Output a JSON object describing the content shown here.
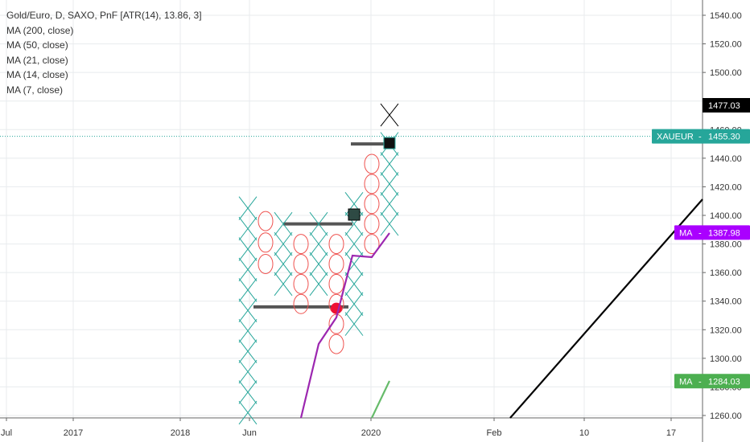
{
  "legend": {
    "title": "Gold/Euro, D, SAXO, PnF [ATR(14), 13.86, 3]",
    "ma200": "MA (200, close)",
    "ma50": "MA (50, close)",
    "ma21": "MA (21, close)",
    "ma14": "MA (14, close)",
    "ma7": "MA (7, close)"
  },
  "chart_data": {
    "type": "point-and-figure",
    "symbol": "Gold/Euro",
    "ylim": [
      1255,
      1550
    ],
    "y_ticks": [
      "1540.00",
      "1520.00",
      "1500.00",
      "1480.00",
      "1460.00",
      "1440.00",
      "1420.00",
      "1400.00",
      "1380.00",
      "1360.00",
      "1340.00",
      "1320.00",
      "1300.00",
      "1280.00",
      "1260.00"
    ],
    "x_ticks": [
      "Jul",
      "2017",
      "2018",
      "Jun",
      "2020",
      "Feb",
      "10",
      "17"
    ],
    "columns": [
      {
        "type": "X",
        "low": 1262,
        "high": 1405
      },
      {
        "type": "O",
        "low": 1366,
        "high": 1396
      },
      {
        "type": "X",
        "low": 1352,
        "high": 1394
      },
      {
        "type": "O",
        "low": 1338,
        "high": 1380
      },
      {
        "type": "X",
        "low": 1352,
        "high": 1394
      },
      {
        "type": "O",
        "low": 1310,
        "high": 1380
      },
      {
        "type": "X",
        "low": 1324,
        "high": 1408
      },
      {
        "type": "O",
        "low": 1380,
        "high": 1436
      },
      {
        "type": "X",
        "low": 1394,
        "high": 1450
      }
    ],
    "current_box_x": 1477,
    "support_lines": [
      1336,
      1394,
      1450
    ],
    "ma_lines": [
      {
        "name": "MA",
        "color": "#9c27b0",
        "points": [
          [
            1,
            1256
          ],
          [
            2,
            1310
          ],
          [
            4,
            1375
          ],
          [
            5,
            1375
          ],
          [
            6,
            1388
          ]
        ]
      },
      {
        "name": "MA",
        "color": "#66bb6a",
        "points": [
          [
            4.5,
            1262
          ],
          [
            5.2,
            1285
          ]
        ]
      }
    ],
    "trend_line": [
      [
        8.0,
        1256
      ],
      [
        10.6,
        1412
      ]
    ],
    "price_tags": [
      {
        "label": "1477.03",
        "bg": "#000000",
        "fg": "#ffffff",
        "value": 1477.03
      },
      {
        "label": "XAUEUR",
        "value_label": "1455.30",
        "bg": "#26a69a",
        "fg": "#ffffff",
        "value": 1455.3
      },
      {
        "label": "MA",
        "value_label": "1387.98",
        "bg": "#aa00ff",
        "fg": "#ffffff",
        "value": 1387.98
      },
      {
        "label": "MA",
        "value_label": "1284.03",
        "bg": "#4caf50",
        "fg": "#ffffff",
        "value": 1284.03
      }
    ],
    "colors": {
      "x": "#26a69a",
      "o": "#ef5350",
      "grid": "#e8ebee"
    }
  }
}
